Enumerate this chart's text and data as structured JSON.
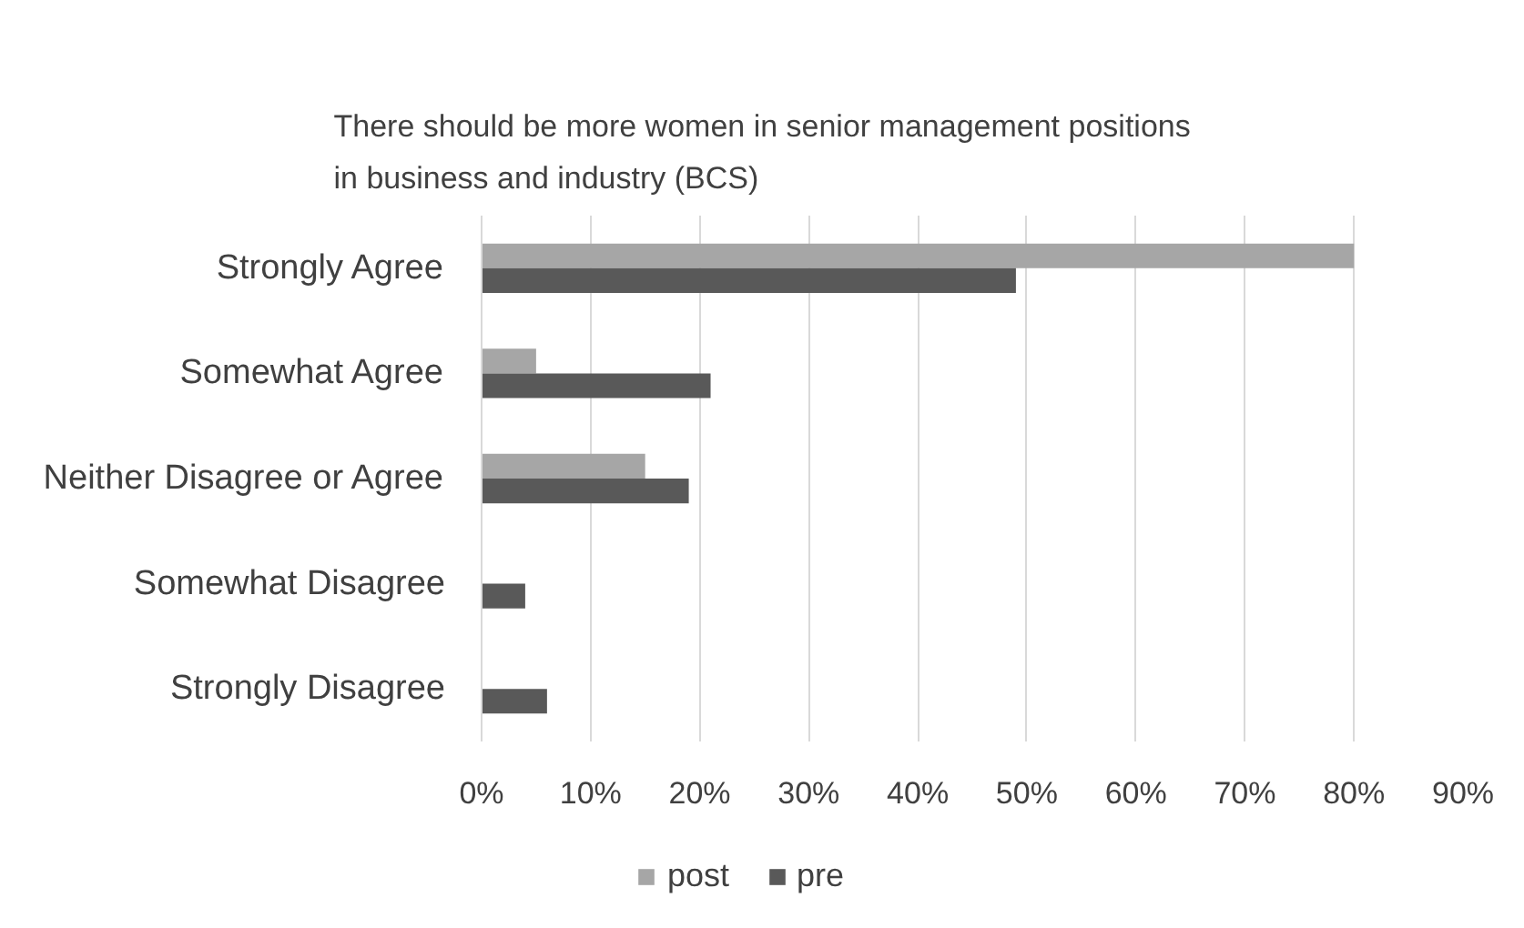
{
  "chart_data": {
    "type": "bar",
    "orientation": "horizontal",
    "title": "There should be more women in senior management positions in business and industry (BCS)",
    "categories": [
      "Strongly Agree",
      "Somewhat Agree",
      "Neither Disagree or Agree",
      "Somewhat Disagree",
      "Strongly Disagree"
    ],
    "series": [
      {
        "name": "post",
        "color": "#a6a6a6",
        "values": [
          80,
          5,
          15,
          0,
          0
        ]
      },
      {
        "name": "pre",
        "color": "#595959",
        "values": [
          49,
          21,
          19,
          4,
          6
        ]
      }
    ],
    "xlim": [
      0,
      90
    ],
    "xticks": [
      {
        "value": 0,
        "label": "0%"
      },
      {
        "value": 10,
        "label": "10%"
      },
      {
        "value": 20,
        "label": "20%"
      },
      {
        "value": 30,
        "label": "30%"
      },
      {
        "value": 40,
        "label": "40%"
      },
      {
        "value": 50,
        "label": "50%"
      },
      {
        "value": 60,
        "label": "60%"
      },
      {
        "value": 70,
        "label": "70%"
      },
      {
        "value": 80,
        "label": "80%"
      },
      {
        "value": 90,
        "label": "90%"
      }
    ],
    "grid": "x",
    "legend": "bottom"
  }
}
